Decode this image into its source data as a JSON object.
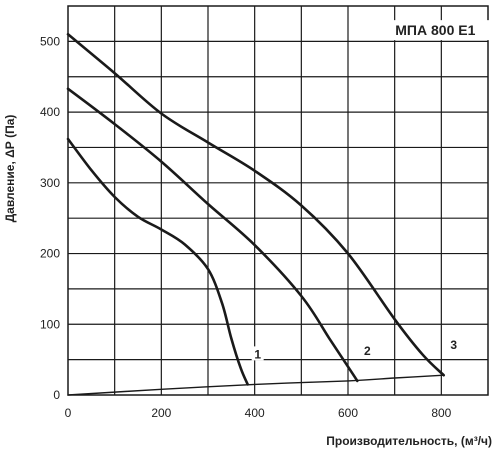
{
  "chart_data": {
    "type": "line",
    "title": "МПА 800 Е1",
    "xlabel": "Производительность, (м³/ч)",
    "ylabel": "Давление, ΔР (Па)",
    "xlim": [
      0,
      900
    ],
    "ylim": [
      0,
      550
    ],
    "x_ticks": [
      0,
      200,
      400,
      600,
      800
    ],
    "y_ticks": [
      0,
      100,
      200,
      300,
      400,
      500
    ],
    "grid": true,
    "series": [
      {
        "name": "1",
        "x": [
          0,
          50,
          100,
          150,
          200,
          250,
          300,
          330,
          350,
          370,
          385
        ],
        "y": [
          362,
          318,
          280,
          252,
          234,
          213,
          178,
          130,
          80,
          38,
          15
        ]
      },
      {
        "name": "2",
        "x": [
          0,
          100,
          200,
          300,
          400,
          500,
          560,
          600,
          620
        ],
        "y": [
          433,
          383,
          330,
          270,
          212,
          140,
          80,
          40,
          20
        ]
      },
      {
        "name": "3",
        "x": [
          0,
          100,
          200,
          300,
          400,
          500,
          600,
          700,
          760,
          805
        ],
        "y": [
          510,
          455,
          398,
          357,
          317,
          268,
          200,
          107,
          57,
          28
        ]
      },
      {
        "name": "",
        "x": [
          0,
          200,
          400,
          600,
          700,
          805
        ],
        "y": [
          0,
          8,
          15,
          20,
          24,
          28
        ]
      }
    ]
  }
}
